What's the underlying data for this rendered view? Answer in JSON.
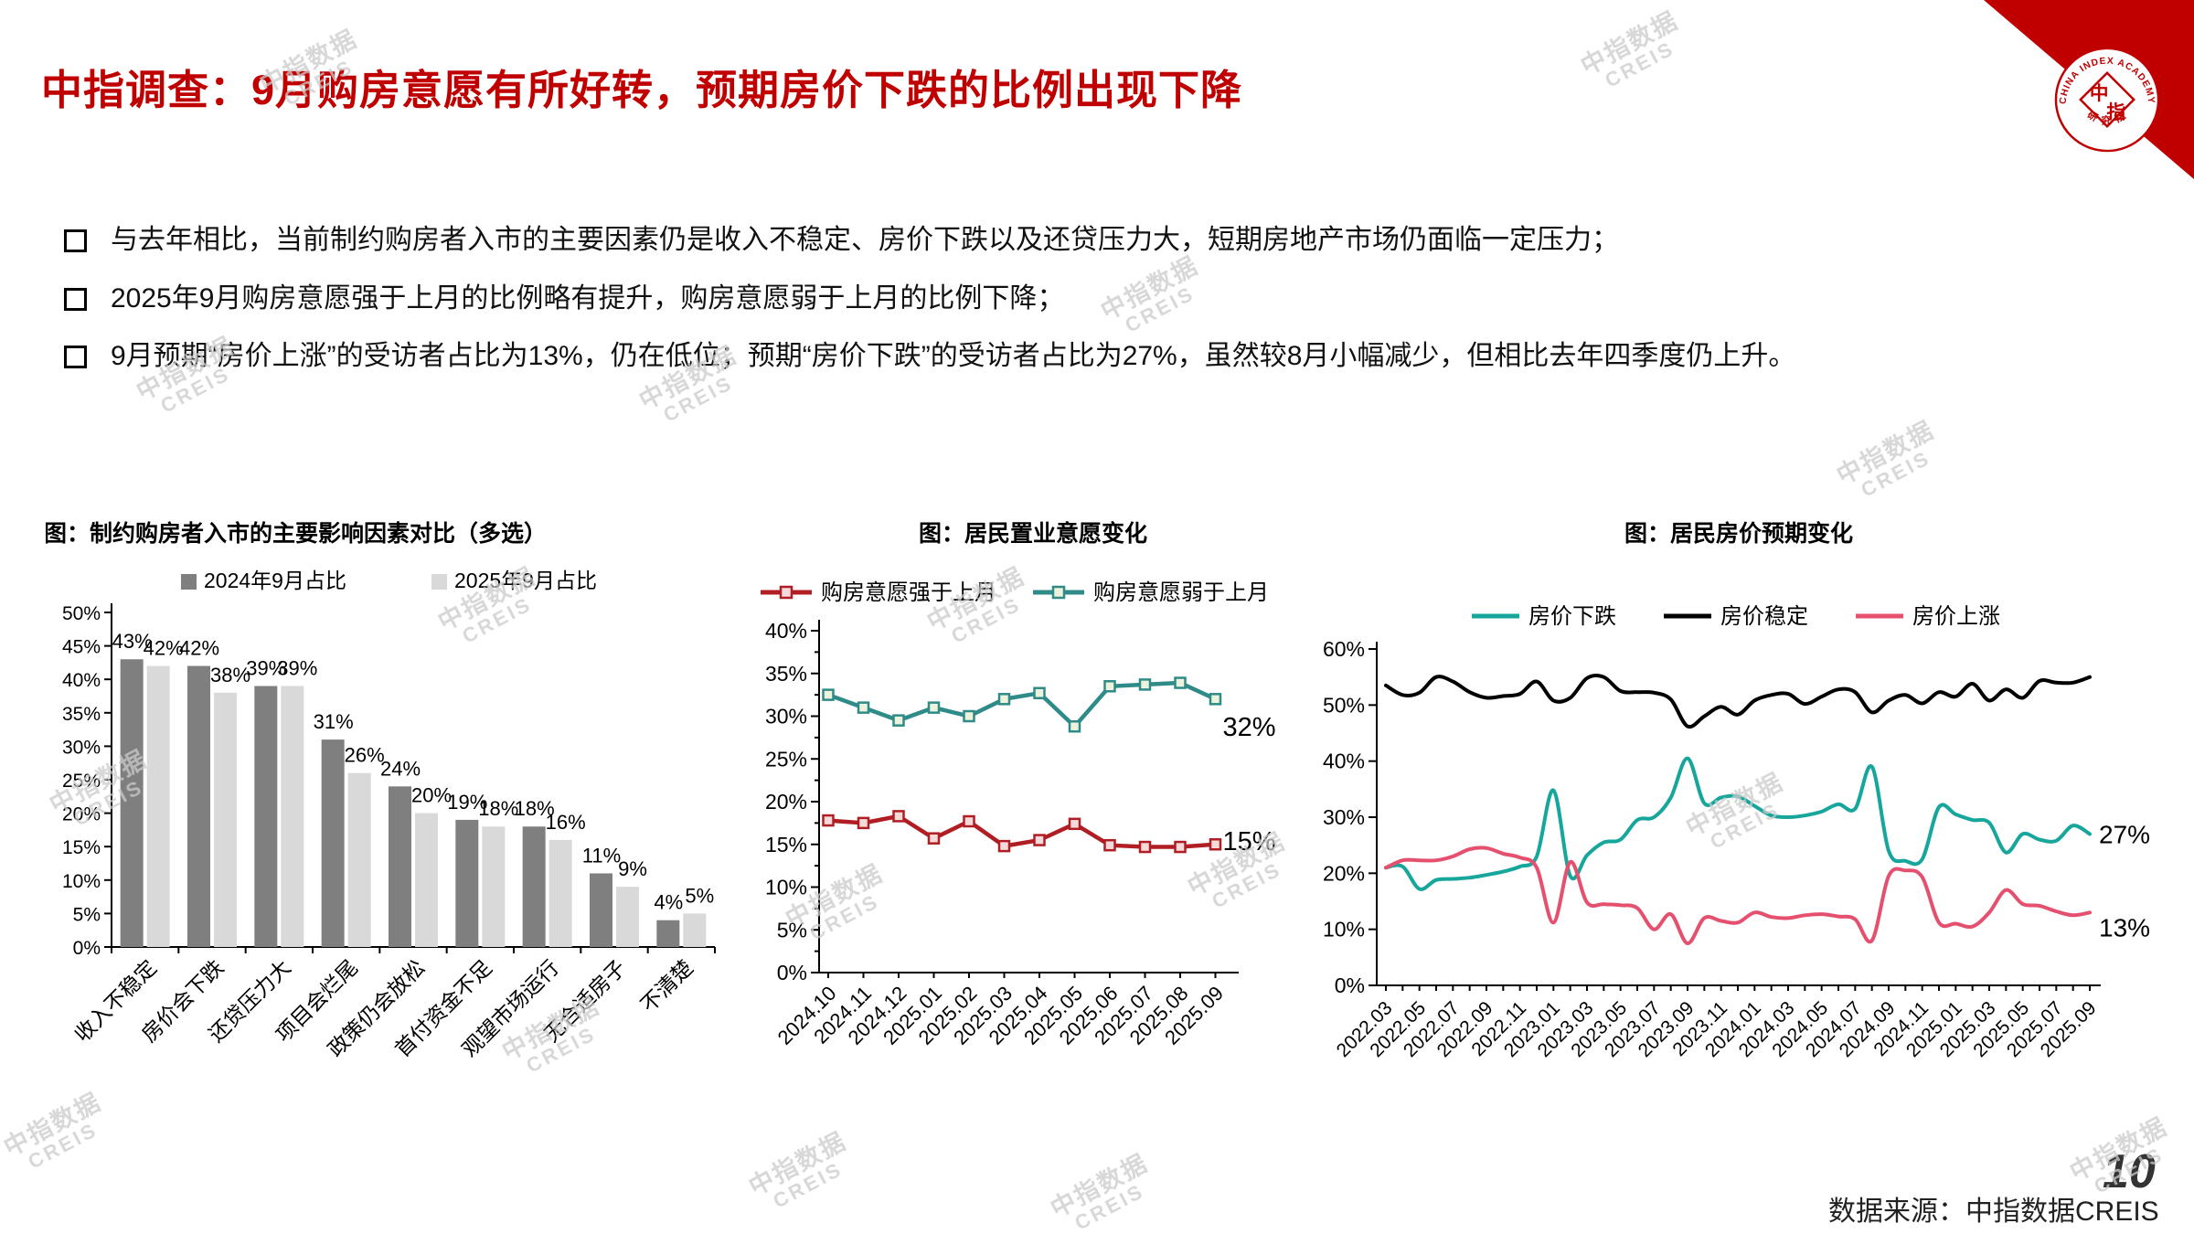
{
  "page": {
    "title": "中指调查：9月购房意愿有所好转，预期房价下跌的比例出现下降",
    "bullets": [
      "与去年相比，当前制约购房者入市的主要因素仍是收入不稳定、房价下跌以及还贷压力大，短期房地产市场仍面临一定压力；",
      "2025年9月购房意愿强于上月的比例略有提升，购房意愿弱于上月的比例下降；",
      "9月预期“房价上涨”的受访者占比为13%，仍在低位；预期“房价下跌”的受访者占比为27%，虽然较8月小幅减少，但相比去年四季度仍上升。"
    ],
    "source": "数据来源：中指数据CREIS",
    "page_number": "10",
    "watermark": {
      "line1": "中指数据",
      "line2": "CREIS"
    },
    "logo": {
      "ring_text": "CHINA INDEX ACADEMY",
      "bottom_text": "研 究 院",
      "char_top": "中",
      "char_bottom": "指"
    }
  },
  "colors": {
    "title_red": "#C00000",
    "corner_red": "#C00000",
    "axis_black": "#000000",
    "watermark_gray": "#CBCBCB"
  },
  "chart_data": [
    {
      "type": "bar",
      "title": "图：制约购房者入市的主要影响因素对比（多选）",
      "categories": [
        "收入不稳定",
        "房价会下跌",
        "还贷压力大",
        "项目会烂尾",
        "政策仍会放松",
        "首付资金不足",
        "观望市场运行",
        "无合适房子",
        "不清楚"
      ],
      "series": [
        {
          "name": "2024年9月占比",
          "color": "#7F7F7F",
          "values": [
            43,
            42,
            39,
            31,
            24,
            19,
            18,
            11,
            4
          ]
        },
        {
          "name": "2025年9月占比",
          "color": "#D9D9D9",
          "values": [
            42,
            38,
            39,
            26,
            20,
            18,
            16,
            9,
            5
          ]
        }
      ],
      "ylim": [
        0,
        50
      ],
      "ytick_step": 5,
      "unit": "%",
      "grid": false,
      "legend_position": "top"
    },
    {
      "type": "line",
      "title": "图：居民置业意愿变化",
      "x": [
        "2024.10",
        "2024.11",
        "2024.12",
        "2025.01",
        "2025.02",
        "2025.03",
        "2025.04",
        "2025.05",
        "2025.06",
        "2025.07",
        "2025.08",
        "2025.09"
      ],
      "series": [
        {
          "name": "购房意愿强于上月",
          "color": "#B01E24",
          "marker_fill": "#F6DADA",
          "values": [
            17.8,
            17.5,
            18.3,
            15.7,
            17.7,
            14.8,
            15.5,
            17.4,
            14.9,
            14.7,
            14.7,
            15.0
          ],
          "end_label": "15%"
        },
        {
          "name": "购房意愿弱于上月",
          "color": "#2E8B87",
          "marker_fill": "#ECF2DC",
          "values": [
            32.5,
            31.0,
            29.5,
            31.0,
            30.0,
            32.0,
            32.7,
            28.8,
            33.5,
            33.7,
            33.9,
            32.0
          ],
          "end_label": "32%"
        }
      ],
      "ylim": [
        0,
        40
      ],
      "ytick_step": 5,
      "unit": "%",
      "grid": false,
      "legend_position": "top"
    },
    {
      "type": "line-smooth",
      "title": "图：居民房价预期变化",
      "x": [
        "2022.03",
        "2022.04",
        "2022.05",
        "2022.06",
        "2022.07",
        "2022.08",
        "2022.09",
        "2022.10",
        "2022.11",
        "2022.12",
        "2023.01",
        "2023.02",
        "2023.03",
        "2023.04",
        "2023.05",
        "2023.06",
        "2023.07",
        "2023.08",
        "2023.09",
        "2023.10",
        "2023.11",
        "2023.12",
        "2024.01",
        "2024.02",
        "2024.03",
        "2024.04",
        "2024.05",
        "2024.06",
        "2024.07",
        "2024.08",
        "2024.09",
        "2024.10",
        "2024.11",
        "2024.12",
        "2025.01",
        "2025.02",
        "2025.03",
        "2025.04",
        "2025.05",
        "2025.06",
        "2025.07",
        "2025.08",
        "2025.09"
      ],
      "x_label_every": 2,
      "series": [
        {
          "name": "房价下跌",
          "color": "#16A69B",
          "values": [
            21.0,
            21.2,
            17.2,
            18.8,
            19.0,
            19.2,
            19.7,
            20.3,
            21.2,
            23.0,
            34.8,
            19.5,
            23.2,
            25.5,
            26.0,
            29.5,
            30.0,
            33.5,
            40.5,
            32.5,
            33.5,
            33.7,
            32.0,
            30.3,
            30.0,
            30.3,
            31.0,
            32.3,
            31.5,
            39.0,
            24.0,
            22.2,
            22.5,
            31.8,
            30.5,
            29.5,
            29.0,
            23.7,
            27.0,
            26.0,
            25.8,
            28.5,
            27.0
          ],
          "end_label": "27%"
        },
        {
          "name": "房价稳定",
          "color": "#000000",
          "values": [
            53.5,
            51.8,
            52.2,
            55.0,
            54.2,
            52.3,
            51.3,
            51.6,
            52.0,
            54.2,
            50.8,
            51.3,
            54.8,
            55.0,
            52.5,
            52.3,
            52.2,
            51.0,
            46.2,
            48.0,
            49.7,
            48.3,
            50.8,
            51.8,
            52.0,
            50.2,
            51.5,
            52.8,
            52.3,
            48.7,
            50.8,
            51.8,
            50.3,
            52.3,
            51.5,
            53.8,
            50.8,
            52.8,
            51.3,
            54.3,
            54.0,
            54.0,
            55.0
          ],
          "end_label": ""
        },
        {
          "name": "房价上涨",
          "color": "#E5506F",
          "values": [
            21.0,
            22.3,
            22.3,
            22.3,
            23.0,
            24.3,
            24.5,
            23.5,
            22.8,
            21.0,
            11.2,
            22.0,
            14.8,
            14.5,
            14.3,
            13.8,
            10.0,
            12.7,
            7.5,
            12.0,
            11.5,
            11.2,
            13.0,
            12.2,
            12.0,
            12.5,
            12.7,
            12.3,
            11.8,
            8.0,
            19.5,
            20.5,
            19.3,
            11.2,
            11.0,
            10.5,
            13.0,
            17.0,
            14.5,
            14.2,
            13.2,
            12.5,
            13.0
          ],
          "end_label": "13%"
        }
      ],
      "ylim": [
        0,
        60
      ],
      "ytick_step": 10,
      "unit": "%",
      "grid": false,
      "legend_position": "top"
    }
  ]
}
